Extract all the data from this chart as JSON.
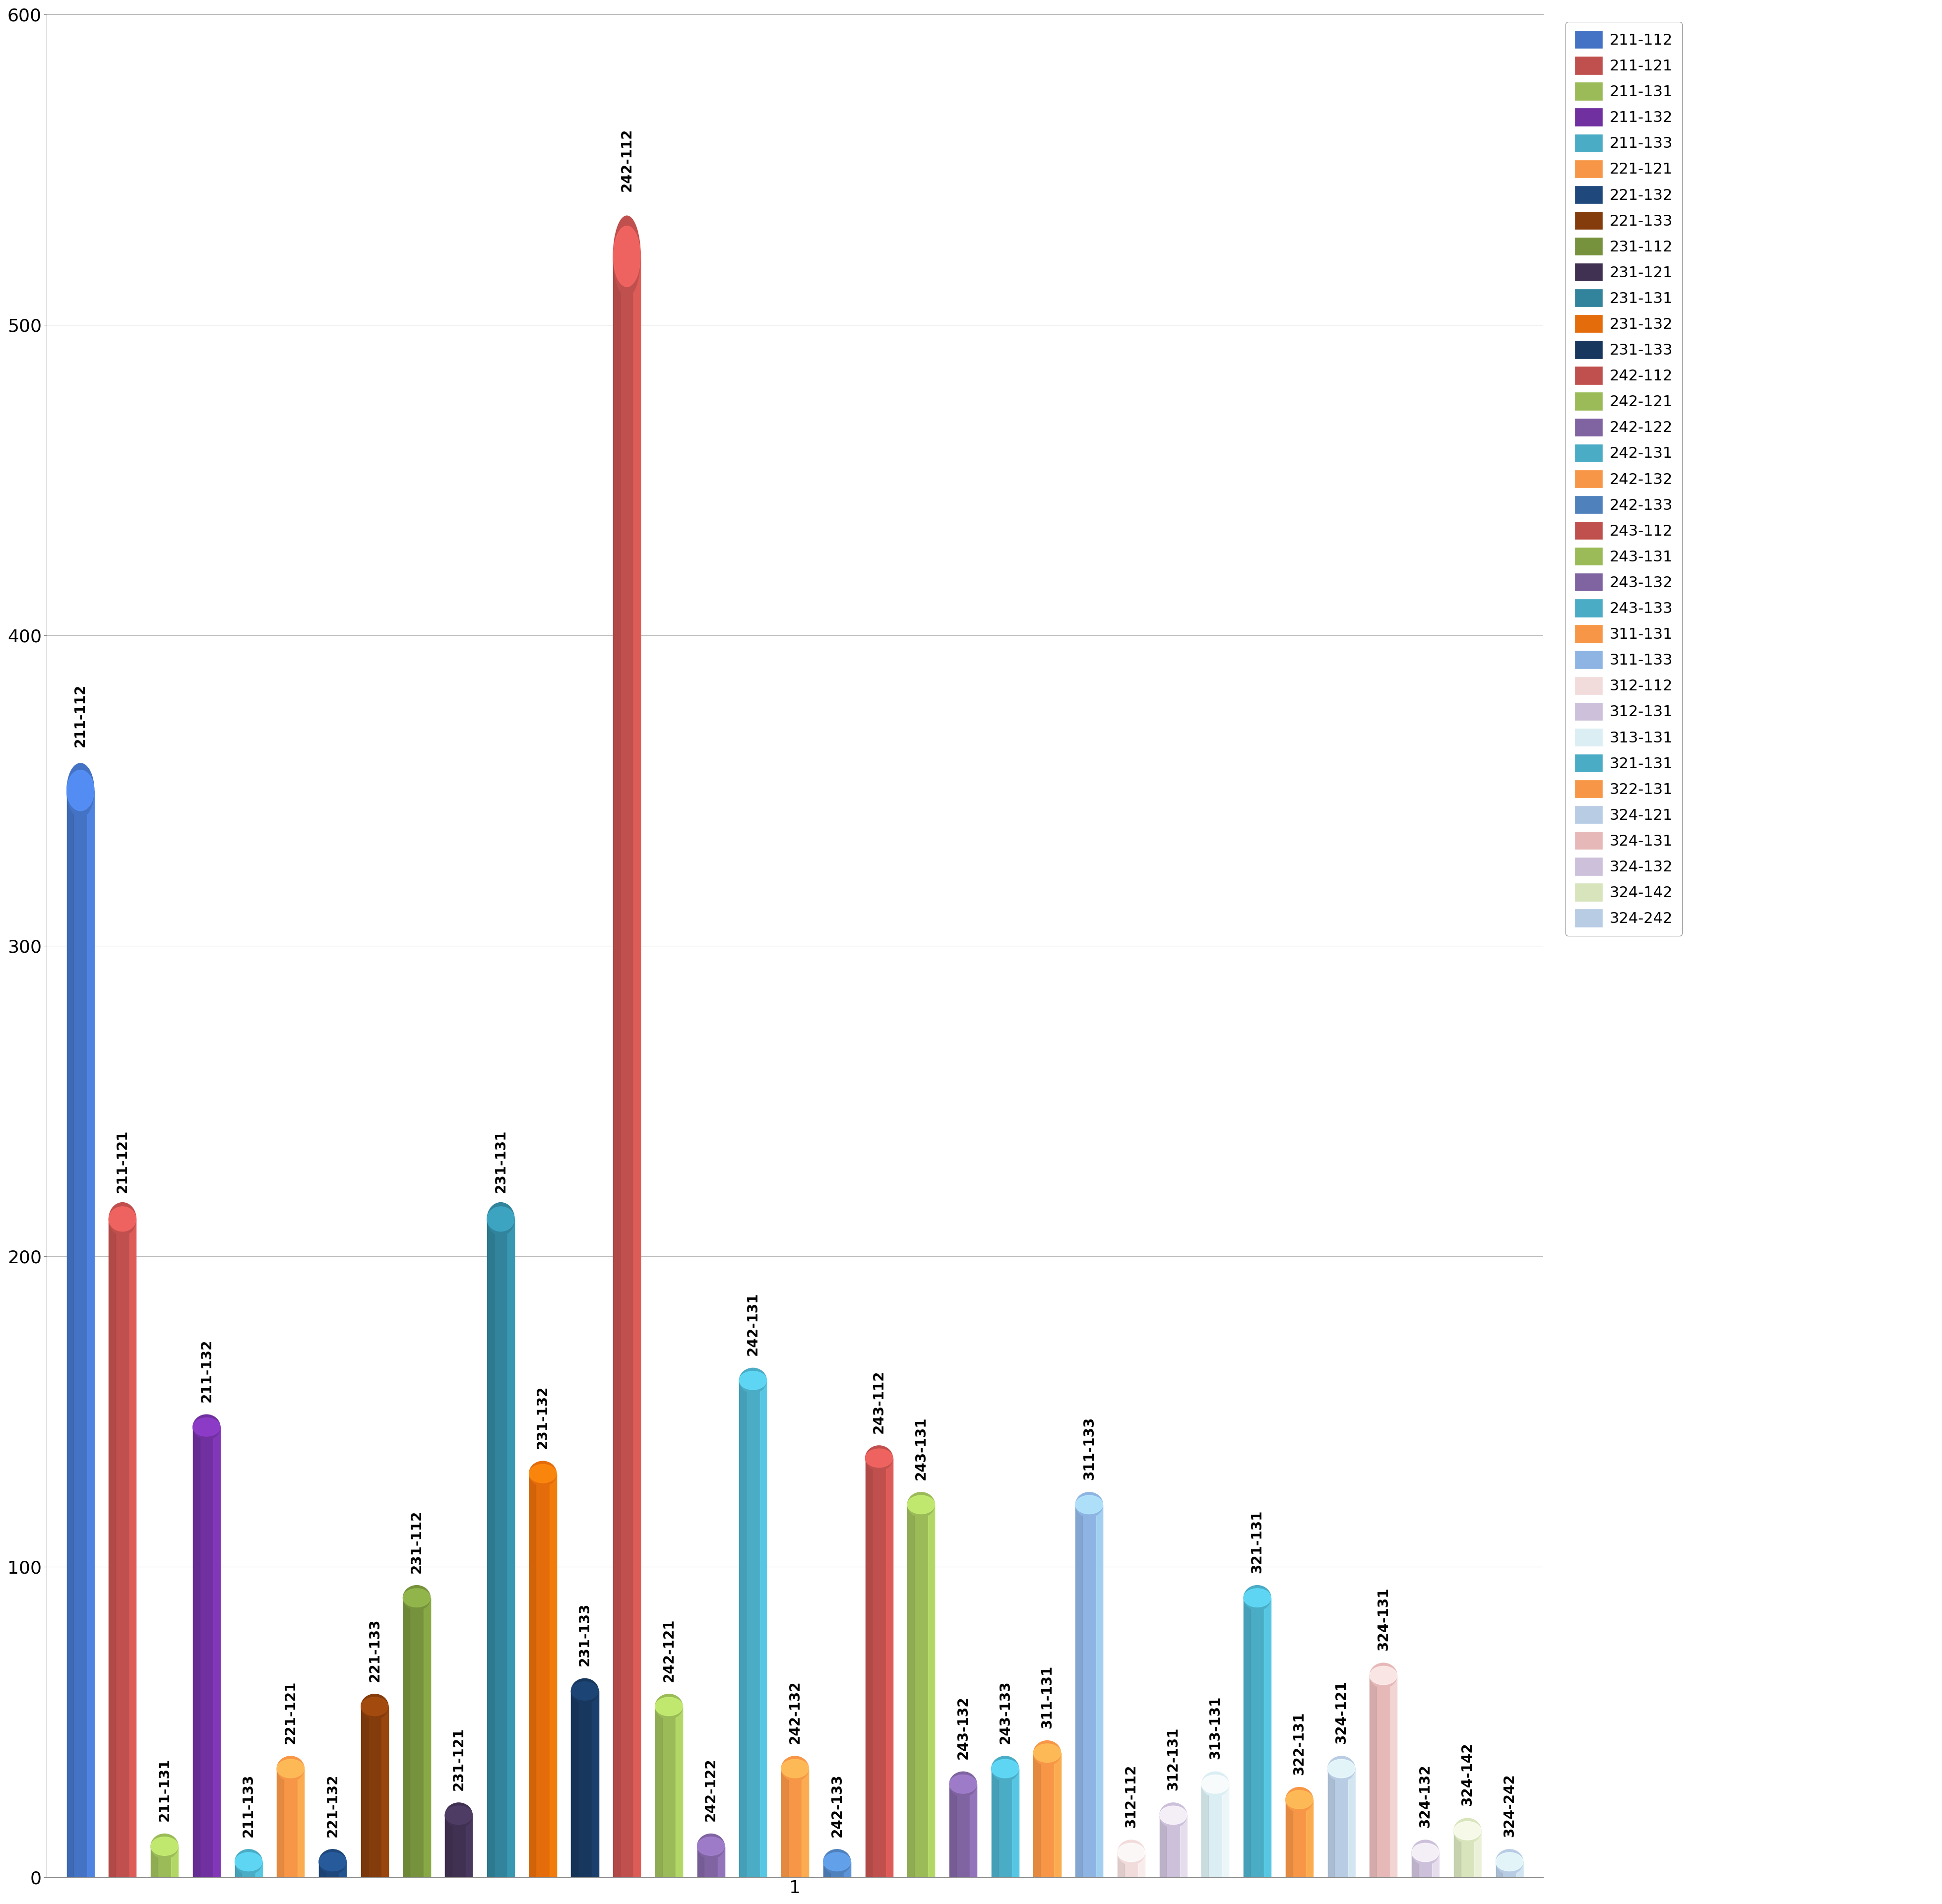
{
  "series": [
    {
      "label": "211-112",
      "value": 350,
      "color": "#4472C4"
    },
    {
      "label": "211-121",
      "value": 212,
      "color": "#C0504D"
    },
    {
      "label": "211-131",
      "value": 10,
      "color": "#9BBB59"
    },
    {
      "label": "211-132",
      "value": 145,
      "color": "#7030A0"
    },
    {
      "label": "211-133",
      "value": 5,
      "color": "#4BACC6"
    },
    {
      "label": "221-121",
      "value": 35,
      "color": "#F79646"
    },
    {
      "label": "221-132",
      "value": 5,
      "color": "#1F497D"
    },
    {
      "label": "221-133",
      "value": 55,
      "color": "#843C0C"
    },
    {
      "label": "231-112",
      "value": 90,
      "color": "#76923C"
    },
    {
      "label": "231-121",
      "value": 20,
      "color": "#403152"
    },
    {
      "label": "231-131",
      "value": 212,
      "color": "#31849B"
    },
    {
      "label": "231-132",
      "value": 130,
      "color": "#E46C0A"
    },
    {
      "label": "231-133",
      "value": 60,
      "color": "#17375E"
    },
    {
      "label": "242-112",
      "value": 522,
      "color": "#C0504D"
    },
    {
      "label": "242-121",
      "value": 55,
      "color": "#9BBB59"
    },
    {
      "label": "242-122",
      "value": 10,
      "color": "#8064A2"
    },
    {
      "label": "242-131",
      "value": 160,
      "color": "#4BACC6"
    },
    {
      "label": "242-132",
      "value": 35,
      "color": "#F79646"
    },
    {
      "label": "242-133",
      "value": 5,
      "color": "#4F81BD"
    },
    {
      "label": "243-112",
      "value": 135,
      "color": "#C0504D"
    },
    {
      "label": "243-131",
      "value": 120,
      "color": "#9BBB59"
    },
    {
      "label": "243-132",
      "value": 30,
      "color": "#8064A2"
    },
    {
      "label": "243-133",
      "value": 35,
      "color": "#4BACC6"
    },
    {
      "label": "311-131",
      "value": 40,
      "color": "#F79646"
    },
    {
      "label": "311-133",
      "value": 120,
      "color": "#8DB4E2"
    },
    {
      "label": "312-112",
      "value": 8,
      "color": "#F2DCDB"
    },
    {
      "label": "312-131",
      "value": 20,
      "color": "#CCC0DA"
    },
    {
      "label": "313-131",
      "value": 30,
      "color": "#DAEEF3"
    },
    {
      "label": "321-131",
      "value": 90,
      "color": "#4BACC6"
    },
    {
      "label": "322-131",
      "value": 25,
      "color": "#F79646"
    },
    {
      "label": "324-121",
      "value": 35,
      "color": "#B8CCE4"
    },
    {
      "label": "324-131",
      "value": 65,
      "color": "#E6B9B8"
    },
    {
      "label": "324-132",
      "value": 8,
      "color": "#CCC0DA"
    },
    {
      "label": "324-142",
      "value": 15,
      "color": "#D7E4BC"
    },
    {
      "label": "324-242",
      "value": 5,
      "color": "#B8CCE4"
    }
  ],
  "legend_colors": {
    "211-112": "#4472C4",
    "211-121": "#C0504D",
    "211-131": "#9BBB59",
    "211-132": "#7030A0",
    "211-133": "#4BACC6",
    "221-121": "#F79646",
    "221-132": "#1F497D",
    "221-133": "#843C0C",
    "231-112": "#76923C",
    "231-121": "#403152",
    "231-131": "#31849B",
    "231-132": "#E46C0A",
    "231-133": "#17375E",
    "242-112": "#C0504D",
    "242-121": "#9BBB59",
    "242-122": "#8064A2",
    "242-131": "#4BACC6",
    "242-132": "#F79646",
    "242-133": "#4F81BD",
    "243-112": "#C0504D",
    "243-131": "#9BBB59",
    "243-132": "#8064A2",
    "243-133": "#4BACC6",
    "311-131": "#F79646",
    "311-133": "#8DB4E2",
    "312-112": "#F2DCDB",
    "312-131": "#CCC0DA",
    "313-131": "#DAEEF3",
    "321-131": "#4BACC6",
    "322-131": "#F79646",
    "324-121": "#B8CCE4",
    "324-131": "#E6B9B8",
    "324-132": "#CCC0DA",
    "324-142": "#D7E4BC",
    "324-242": "#B8CCE4"
  },
  "ylim": [
    0,
    600
  ],
  "yticks": [
    0,
    100,
    200,
    300,
    400,
    500,
    600
  ],
  "xlabel": "1",
  "background_color": "#FFFFFF",
  "grid_color": "#BBBBBB"
}
